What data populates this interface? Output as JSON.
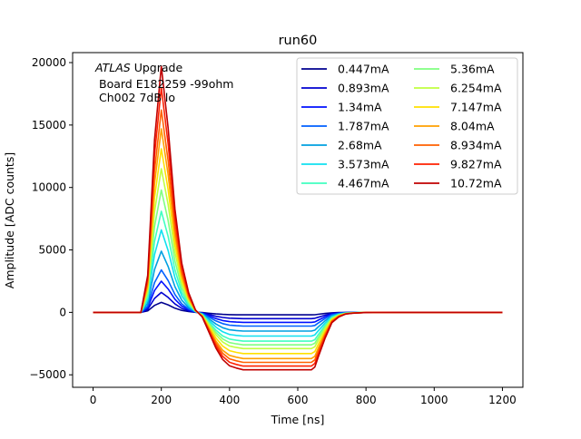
{
  "chart_data": {
    "type": "line",
    "title": "run60",
    "xlabel": "Time [ns]",
    "ylabel": "Amplitude [ADC counts]",
    "xlim": [
      -60,
      1260
    ],
    "ylim": [
      -6000,
      20800
    ],
    "xticks": [
      0,
      200,
      400,
      600,
      800,
      1000,
      1200
    ],
    "xtick_labels": [
      "0",
      "200",
      "400",
      "600",
      "800",
      "1000",
      "1200"
    ],
    "yticks": [
      -5000,
      0,
      5000,
      10000,
      15000,
      20000
    ],
    "ytick_labels": [
      "−5000",
      "0",
      "5000",
      "10000",
      "15000",
      "20000"
    ],
    "grid": false,
    "legend_placement": "top-right",
    "legend_columns": 2,
    "annotation": {
      "line1_italic": "ATLAS",
      "line1_rest": " Upgrade",
      "line2": "Board E182259 -99ohm",
      "line3": "Ch002 7dB lo"
    },
    "x": [
      0,
      140,
      160,
      180,
      200,
      220,
      240,
      260,
      280,
      300,
      320,
      340,
      360,
      380,
      400,
      420,
      440,
      460,
      500,
      550,
      600,
      640,
      650,
      660,
      680,
      700,
      720,
      740,
      760,
      780,
      800,
      820,
      850,
      900,
      1000,
      1100,
      1200
    ],
    "series": [
      {
        "name": "0.447mA",
        "color": "#00008f",
        "peak": 800,
        "undershoot": -200
      },
      {
        "name": "0.893mA",
        "color": "#0000d0",
        "peak": 1600,
        "undershoot": -500
      },
      {
        "name": "1.34mA",
        "color": "#0010ff",
        "peak": 2500,
        "undershoot": -800
      },
      {
        "name": "1.787mA",
        "color": "#0060ff",
        "peak": 3400,
        "undershoot": -1100
      },
      {
        "name": "2.68mA",
        "color": "#00a0e0",
        "peak": 4900,
        "undershoot": -1500
      },
      {
        "name": "3.573mA",
        "color": "#10e0f0",
        "peak": 6600,
        "undershoot": -1900
      },
      {
        "name": "4.467mA",
        "color": "#40ffc0",
        "peak": 8100,
        "undershoot": -2300
      },
      {
        "name": "5.36mA",
        "color": "#80ff80",
        "peak": 9800,
        "undershoot": -2600
      },
      {
        "name": "6.254mA",
        "color": "#c0ff40",
        "peak": 11500,
        "undershoot": -2900
      },
      {
        "name": "7.147mA",
        "color": "#ffe000",
        "peak": 13100,
        "undershoot": -3300
      },
      {
        "name": "8.04mA",
        "color": "#ffa000",
        "peak": 14700,
        "undershoot": -3700
      },
      {
        "name": "8.934mA",
        "color": "#ff6000",
        "peak": 16200,
        "undershoot": -4000
      },
      {
        "name": "9.827mA",
        "color": "#ff2000",
        "peak": 18000,
        "undershoot": -4300
      },
      {
        "name": "10.72mA",
        "color": "#c00000",
        "peak": 19700,
        "undershoot": -4600
      }
    ]
  }
}
